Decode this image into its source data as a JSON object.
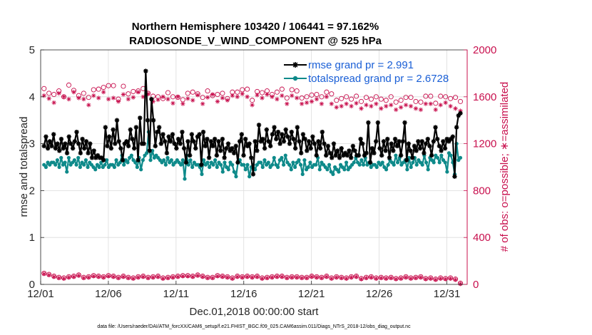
{
  "chart_data": {
    "type": "line",
    "title_line1": "Northern Hemisphere 103420 / 106441 = 97.162%",
    "title_line2": "RADIOSONDE_V_WIND_COMPONENT @ 525 hPa",
    "xlabel": "Dec.01,2018 00:00:00 start",
    "ylabel_left": "rmse and totalspread",
    "ylabel_right": "# of obs: o=possible; ∗=assimilated",
    "footer": "data file: /Users/raeder/DAI/ATM_forcXX/CAM6_setup/f.e21.FHIST_BGC.f09_025.CAM6assim.011/Diags_NTrS_2018-12/obs_diag_output.nc",
    "xlim": [
      0,
      31.5
    ],
    "ylim_left": [
      0,
      5
    ],
    "ylim_right": [
      0,
      2000
    ],
    "x_ticks": [
      0,
      5,
      10,
      15,
      20,
      25,
      30
    ],
    "x_tick_labels": [
      "12/01",
      "12/06",
      "12/11",
      "12/16",
      "12/21",
      "12/26",
      "12/31"
    ],
    "y_ticks_left": [
      0,
      1,
      2,
      3,
      4,
      5
    ],
    "y_ticks_right": [
      0,
      400,
      800,
      1200,
      1600,
      2000
    ],
    "grid": true,
    "legend_position": "top-right",
    "colors": {
      "rmse": "#000000",
      "totalspread": "#0e8a8a",
      "obs": "#c8104e",
      "axis": "#262626",
      "legend_text": "#1a5fd6",
      "grid": "#dcdcdc"
    },
    "series": [
      {
        "name": "rmse grand pr = 2.991",
        "key": "rmse",
        "axis": "left",
        "values": [
          2.95,
          3.15,
          2.9,
          3.05,
          2.95,
          3.2,
          2.9,
          3.0,
          2.85,
          3.1,
          2.9,
          3.0,
          2.8,
          3.15,
          3.0,
          2.9,
          3.05,
          3.25,
          3.0,
          2.8,
          3.1,
          2.9,
          3.05,
          2.8,
          3.0,
          2.7,
          2.85,
          2.7,
          2.75,
          2.7,
          2.7,
          2.65,
          3.35,
          2.95,
          3.15,
          2.9,
          3.3,
          3.0,
          3.5,
          3.05,
          2.9,
          2.65,
          3.0,
          3.05,
          2.95,
          3.3,
          3.1,
          2.9,
          3.35,
          2.65,
          3.55,
          3.0,
          3.0,
          4.55,
          3.5,
          2.85,
          3.95,
          3.5,
          2.95,
          3.25,
          3.35,
          3.0,
          3.2,
          3.05,
          2.8,
          3.15,
          3.05,
          3.2,
          3.0,
          2.9,
          3.1,
          3.0,
          3.25,
          2.9,
          2.6,
          3.05,
          2.75,
          3.2,
          3.05,
          2.9,
          3.15,
          3.2,
          2.55,
          3.25,
          2.95,
          3.1,
          2.7,
          3.05,
          2.95,
          3.1,
          2.75,
          3.05,
          2.85,
          3.1,
          2.7,
          2.9,
          3.0,
          2.85,
          2.9,
          2.8,
          2.95,
          2.6,
          3.05,
          3.2,
          2.75,
          3.1,
          2.95,
          3.0,
          2.7,
          2.35,
          3.05,
          2.85,
          3.4,
          3.05,
          3.1,
          2.9,
          3.3,
          3.05,
          2.95,
          3.2,
          3.35,
          3.1,
          3.25,
          3.0,
          3.2,
          3.05,
          3.3,
          3.15,
          3.0,
          3.25,
          3.1,
          2.9,
          3.35,
          3.05,
          2.8,
          3.2,
          3.1,
          2.85,
          3.05,
          2.9,
          3.15,
          3.0,
          2.75,
          3.05,
          2.9,
          3.25,
          3.0,
          2.75,
          2.95,
          2.8,
          2.7,
          3.0,
          2.75,
          2.85,
          2.7,
          2.9,
          2.75,
          2.8,
          2.75,
          2.85,
          2.7,
          2.95,
          2.85,
          2.75,
          2.75,
          3.1,
          3.0,
          2.75,
          2.8,
          3.45,
          2.6,
          2.9,
          2.8,
          3.05,
          3.45,
          2.9,
          2.75,
          3.05,
          2.85,
          3.1,
          2.7,
          3.0,
          2.85,
          3.1,
          2.95,
          3.05,
          2.75,
          3.05,
          3.45,
          2.65,
          3.0,
          2.85,
          2.7,
          2.95,
          2.85,
          3.05,
          2.9,
          3.05,
          2.8,
          3.0,
          3.1,
          2.95,
          2.75,
          3.05,
          3.35,
          3.1,
          2.95,
          2.85,
          3.05,
          2.9,
          3.1,
          3.05,
          3.1,
          3.15,
          2.3,
          3.35,
          3.6,
          3.65
        ]
      },
      {
        "name": "totalspread grand pr = 2.6728",
        "key": "totalspread",
        "axis": "left",
        "values": [
          2.55,
          2.5,
          2.6,
          2.55,
          2.6,
          2.6,
          2.55,
          2.65,
          2.5,
          2.7,
          2.55,
          2.6,
          2.4,
          2.7,
          2.55,
          2.6,
          2.65,
          2.55,
          2.7,
          2.5,
          2.6,
          2.55,
          2.65,
          2.5,
          2.6,
          2.55,
          2.5,
          2.45,
          2.55,
          2.5,
          2.6,
          2.5,
          2.55,
          2.65,
          2.5,
          2.55,
          2.55,
          2.5,
          2.65,
          2.55,
          2.6,
          2.75,
          2.55,
          2.65,
          2.6,
          2.7,
          2.75,
          2.65,
          2.6,
          2.5,
          2.7,
          2.45,
          2.65,
          2.75,
          2.8,
          3.25,
          2.65,
          2.85,
          2.7,
          2.75,
          2.7,
          2.65,
          2.6,
          2.65,
          2.55,
          2.7,
          2.6,
          2.65,
          2.55,
          2.6,
          2.65,
          2.6,
          2.55,
          2.65,
          2.25,
          2.75,
          2.55,
          2.65,
          2.5,
          2.6,
          2.55,
          2.55,
          2.5,
          2.35,
          2.65,
          2.55,
          2.6,
          2.5,
          2.6,
          2.55,
          2.65,
          2.5,
          2.6,
          2.55,
          2.4,
          2.6,
          2.5,
          2.45,
          2.6,
          2.55,
          2.4,
          2.3,
          2.6,
          2.65,
          2.55,
          2.55,
          2.45,
          2.55,
          2.3,
          2.5,
          2.55,
          2.45,
          2.55,
          2.6,
          2.6,
          2.5,
          2.65,
          2.55,
          2.6,
          2.5,
          2.55,
          2.7,
          2.55,
          2.5,
          2.65,
          2.7,
          2.55,
          2.75,
          2.6,
          2.55,
          2.45,
          2.6,
          2.5,
          2.6,
          2.65,
          2.55,
          2.35,
          2.65,
          2.45,
          2.5,
          2.6,
          2.5,
          2.55,
          2.55,
          2.7,
          2.45,
          2.6,
          2.55,
          2.5,
          2.45,
          2.55,
          2.4,
          2.35,
          2.5,
          2.45,
          2.4,
          2.55,
          2.5,
          2.45,
          2.6,
          2.45,
          2.5,
          2.55,
          2.6,
          2.7,
          2.6,
          2.55,
          2.65,
          2.55,
          2.7,
          2.55,
          2.6,
          2.5,
          2.55,
          2.55,
          2.5,
          2.6,
          2.55,
          2.6,
          2.5,
          2.45,
          2.55,
          2.65,
          2.6,
          2.55,
          2.75,
          2.6,
          2.7,
          2.55,
          2.6,
          2.65,
          2.45,
          2.7,
          2.5,
          2.6,
          2.7,
          2.55,
          2.65,
          2.6,
          2.55,
          2.75,
          2.6,
          2.45,
          2.7,
          2.65,
          2.6,
          2.75,
          2.7,
          2.6,
          2.75,
          2.65,
          2.6,
          2.4,
          2.8,
          2.75,
          2.6,
          2.35,
          3.0,
          2.65,
          2.7
        ]
      },
      {
        "name": "possible",
        "key": "possible",
        "axis": "right",
        "values": [
          1670,
          1630,
          1620,
          1650,
          1600,
          1700,
          1655,
          1610,
          1630,
          1595,
          1660,
          1665,
          1680,
          1695,
          1695,
          1580,
          1690,
          1625,
          1645,
          1650,
          1670,
          1630,
          1605,
          1600,
          1585,
          1635,
          1600,
          1595,
          1575,
          1630,
          1640,
          1625,
          1595,
          1650,
          1610,
          1620,
          1630,
          1585,
          1640,
          1640,
          1660,
          1665,
          1570,
          1645,
          1635,
          1650,
          1620,
          1640,
          1665,
          1590,
          1660,
          1650,
          1590,
          1600,
          1615,
          1620,
          1600,
          1640,
          1625,
          1570,
          1585,
          1600,
          1580,
          1605,
          1560,
          1595,
          1580,
          1600,
          1580,
          1570,
          1600,
          1555,
          1570,
          1595,
          1595,
          1560,
          1555,
          1605,
          1605,
          1545,
          1605,
          1600,
          1585,
          1595,
          1560
        ]
      },
      {
        "name": "assimilated",
        "key": "assimilated",
        "axis": "right",
        "values": [
          1610,
          1585,
          1550,
          1630,
          1600,
          1580,
          1640,
          1590,
          1580,
          1530,
          1610,
          1590,
          1640,
          1580,
          1590,
          1560,
          1620,
          1580,
          1595,
          1640,
          1600,
          1625,
          1560,
          1575,
          1600,
          1580,
          1545,
          1600,
          1540,
          1585,
          1570,
          1615,
          1540,
          1595,
          1620,
          1560,
          1590,
          1570,
          1610,
          1600,
          1625,
          1600,
          1530,
          1615,
          1590,
          1620,
          1600,
          1580,
          1610,
          1540,
          1610,
          1590,
          1540,
          1550,
          1560,
          1580,
          1540,
          1600,
          1540,
          1510,
          1520,
          1540,
          1520,
          1545,
          1500,
          1530,
          1520,
          1540,
          1500,
          1520,
          1530,
          1490,
          1510,
          1530,
          1520,
          1500,
          1490,
          1540,
          1540,
          1490,
          1530,
          1550,
          1520,
          1500,
          1480
        ]
      },
      {
        "name": "possible_low",
        "key": "possible_low",
        "axis": "right",
        "values": [
          95,
          85,
          70,
          60,
          55,
          65,
          70,
          80,
          60,
          65,
          75,
          70,
          65,
          75,
          70,
          60,
          70,
          60,
          55,
          65,
          70,
          60,
          65,
          70,
          55,
          60,
          65,
          70,
          75,
          75,
          70,
          80,
          70,
          60,
          60,
          75,
          70,
          65,
          55,
          70,
          65,
          70,
          65,
          70,
          55,
          60,
          65,
          70,
          70,
          60,
          65,
          65,
          60,
          60,
          70,
          65,
          60,
          70,
          55,
          65,
          60,
          55,
          65,
          70,
          50,
          60,
          65,
          55,
          60,
          55,
          60,
          50,
          55,
          65,
          55,
          60,
          65,
          50,
          55,
          45,
          55,
          50,
          55,
          45,
          10
        ]
      },
      {
        "name": "assimilated_low",
        "key": "assimilated_low",
        "axis": "right",
        "values": [
          90,
          80,
          65,
          55,
          50,
          60,
          65,
          75,
          55,
          60,
          70,
          65,
          60,
          70,
          65,
          55,
          65,
          55,
          50,
          60,
          65,
          55,
          60,
          65,
          50,
          55,
          60,
          65,
          70,
          70,
          65,
          75,
          65,
          55,
          55,
          70,
          65,
          60,
          50,
          65,
          60,
          65,
          60,
          65,
          50,
          55,
          60,
          65,
          65,
          55,
          60,
          60,
          55,
          55,
          65,
          60,
          55,
          65,
          50,
          60,
          55,
          50,
          60,
          65,
          45,
          55,
          60,
          50,
          55,
          50,
          55,
          45,
          50,
          60,
          50,
          55,
          60,
          45,
          50,
          40,
          50,
          45,
          50,
          40,
          5
        ]
      }
    ]
  }
}
